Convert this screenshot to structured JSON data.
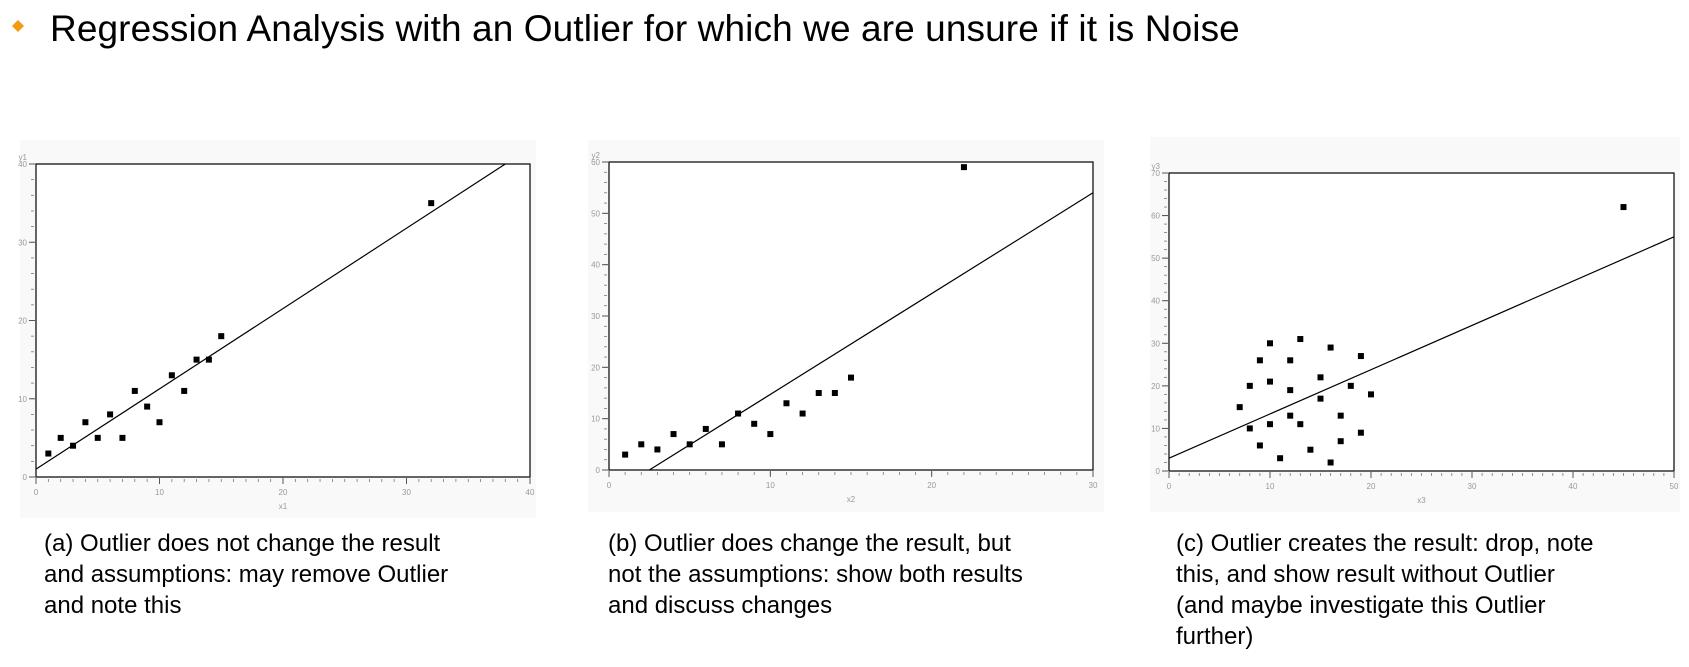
{
  "slide": {
    "title": "Regression Analysis with an Outlier for which we are unsure if it is Noise",
    "bullet_icon": "orange-diamond",
    "accent_color": "#f39c12"
  },
  "captions": [
    [
      "(a) Outlier does not change the result",
      "and assumptions: may remove Outlier",
      "and note this"
    ],
    [
      "(b) Outlier does change the result, but",
      "not the assumptions: show both results",
      "and discuss changes"
    ],
    [
      "(c) Outlier creates the result: drop, note",
      "this, and show result without Outlier",
      "(and maybe investigate this Outlier",
      "further)"
    ]
  ],
  "chart_data": [
    {
      "type": "scatter",
      "panel": "a",
      "xlabel": "x1",
      "ylabel": "y1",
      "xlim": [
        0,
        40
      ],
      "ylim": [
        0,
        40
      ],
      "xticks": [
        0,
        10,
        20,
        30,
        40
      ],
      "yticks": [
        0,
        10,
        20,
        30,
        40
      ],
      "points": [
        [
          1,
          3
        ],
        [
          2,
          5
        ],
        [
          3,
          4
        ],
        [
          4,
          7
        ],
        [
          5,
          5
        ],
        [
          6,
          8
        ],
        [
          7,
          5
        ],
        [
          8,
          11
        ],
        [
          9,
          9
        ],
        [
          10,
          7
        ],
        [
          11,
          13
        ],
        [
          12,
          11
        ],
        [
          13,
          15
        ],
        [
          14,
          15
        ],
        [
          15,
          18
        ],
        [
          32,
          35
        ]
      ],
      "outlier": [
        32,
        35
      ],
      "regression_line": [
        [
          0,
          1
        ],
        [
          38,
          40
        ]
      ]
    },
    {
      "type": "scatter",
      "panel": "b",
      "xlabel": "x2",
      "ylabel": "y2",
      "xlim": [
        0,
        30
      ],
      "ylim": [
        0,
        60
      ],
      "xticks": [
        0,
        10,
        20,
        30
      ],
      "yticks": [
        0,
        10,
        20,
        30,
        40,
        50,
        60
      ],
      "points": [
        [
          1,
          3
        ],
        [
          2,
          5
        ],
        [
          3,
          4
        ],
        [
          4,
          7
        ],
        [
          5,
          5
        ],
        [
          6,
          8
        ],
        [
          7,
          5
        ],
        [
          8,
          11
        ],
        [
          9,
          9
        ],
        [
          10,
          7
        ],
        [
          11,
          13
        ],
        [
          12,
          11
        ],
        [
          13,
          15
        ],
        [
          14,
          15
        ],
        [
          15,
          18
        ],
        [
          22,
          59
        ]
      ],
      "outlier": [
        22,
        59
      ],
      "regression_line": [
        [
          2.5,
          0
        ],
        [
          30,
          54
        ]
      ]
    },
    {
      "type": "scatter",
      "panel": "c",
      "xlabel": "x3",
      "ylabel": "y3",
      "xlim": [
        0,
        50
      ],
      "ylim": [
        0,
        70
      ],
      "xticks": [
        0,
        10,
        20,
        30,
        40,
        50
      ],
      "yticks": [
        0,
        10,
        20,
        30,
        40,
        50,
        60,
        70
      ],
      "points": [
        [
          7,
          15
        ],
        [
          8,
          20
        ],
        [
          8,
          10
        ],
        [
          9,
          26
        ],
        [
          9,
          6
        ],
        [
          10,
          30
        ],
        [
          10,
          21
        ],
        [
          10,
          11
        ],
        [
          11,
          3
        ],
        [
          12,
          26
        ],
        [
          12,
          19
        ],
        [
          12,
          13
        ],
        [
          13,
          31
        ],
        [
          13,
          11
        ],
        [
          14,
          5
        ],
        [
          15,
          22
        ],
        [
          15,
          17
        ],
        [
          16,
          29
        ],
        [
          16,
          2
        ],
        [
          17,
          13
        ],
        [
          17,
          7
        ],
        [
          18,
          20
        ],
        [
          19,
          27
        ],
        [
          19,
          9
        ],
        [
          20,
          18
        ],
        [
          45,
          62
        ]
      ],
      "outlier": [
        45,
        62
      ],
      "regression_line": [
        [
          0,
          3
        ],
        [
          50,
          55
        ]
      ]
    }
  ]
}
